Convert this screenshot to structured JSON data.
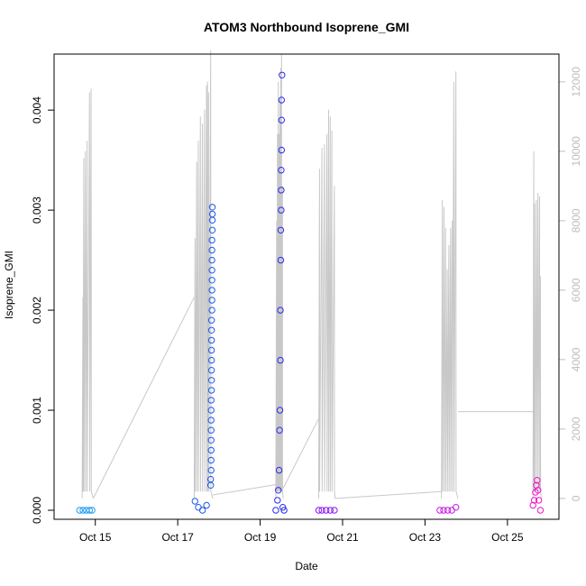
{
  "chart_data": {
    "type": "scatter",
    "title": "ATOM3 Northbound Isoprene_GMI",
    "xlabel": "Date",
    "ylabel": "Isoprene_GMI",
    "x_ticks": [
      "Oct 15",
      "Oct 17",
      "Oct 19",
      "Oct 21",
      "Oct 23",
      "Oct 25"
    ],
    "y_ticks": [
      "0.000",
      "0.001",
      "0.002",
      "0.003",
      "0.004"
    ],
    "y2_ticks": [
      "0",
      "2000",
      "4000",
      "6000",
      "8000",
      "10000",
      "12000"
    ],
    "x_range": [
      "Oct 14 0:00",
      "Oct 26 6:00"
    ],
    "ylim": [
      -9e-05,
      0.00456
    ],
    "y2lim": [
      -600,
      12800
    ],
    "grid": false,
    "colors": {
      "altitude_line": "#c8c8c8",
      "right_axis": "#bdbdbd",
      "flight_1": "#1e9bf0",
      "flight_2": "#1e5aeb",
      "flight_3": "#2a2af0",
      "flight_4": "#8c18ee",
      "flight_5": "#c81ae6",
      "flight_6": "#ee16cc"
    },
    "series": [
      {
        "flight": 1,
        "color_key": "flight_1",
        "date_range": [
          "Oct 14 15:00",
          "Oct 14 21:30"
        ],
        "isoprene_points": [
          [
            14.62,
            0
          ],
          [
            14.7,
            0
          ],
          [
            14.78,
            0
          ],
          [
            14.86,
            0
          ],
          [
            14.92,
            0
          ]
        ]
      },
      {
        "flight": 2,
        "color_key": "flight_2",
        "date_range": [
          "Oct 17 10:00",
          "Oct 17 20:00"
        ],
        "isoprene_points": [
          [
            17.42,
            9e-05
          ],
          [
            17.5,
            3e-05
          ],
          [
            17.6,
            0
          ],
          [
            17.7,
            5e-05
          ],
          [
            17.8,
            0.00025
          ],
          [
            17.8,
            0.00031
          ],
          [
            17.81,
            0.0004
          ],
          [
            17.81,
            0.0005
          ],
          [
            17.81,
            0.0006
          ],
          [
            17.81,
            0.0007
          ],
          [
            17.81,
            0.0008
          ],
          [
            17.81,
            0.0009
          ],
          [
            17.81,
            0.001
          ],
          [
            17.81,
            0.0011
          ],
          [
            17.82,
            0.0012
          ],
          [
            17.82,
            0.0013
          ],
          [
            17.82,
            0.0014
          ],
          [
            17.82,
            0.0015
          ],
          [
            17.82,
            0.0016
          ],
          [
            17.82,
            0.0017
          ],
          [
            17.82,
            0.0018
          ],
          [
            17.82,
            0.0019
          ],
          [
            17.83,
            0.002
          ],
          [
            17.83,
            0.0021
          ],
          [
            17.83,
            0.0022
          ],
          [
            17.83,
            0.0023
          ],
          [
            17.83,
            0.0024
          ],
          [
            17.83,
            0.0025
          ],
          [
            17.83,
            0.0026
          ],
          [
            17.83,
            0.0027
          ],
          [
            17.84,
            0.0028
          ],
          [
            17.84,
            0.0029
          ],
          [
            17.84,
            0.00296
          ],
          [
            17.84,
            0.00303
          ]
        ]
      },
      {
        "flight": 3,
        "color_key": "flight_3",
        "date_range": [
          "Oct 19 9:00",
          "Oct 19 14:00"
        ],
        "isoprene_points": [
          [
            19.38,
            0
          ],
          [
            19.42,
            0.0001
          ],
          [
            19.44,
            0.0002
          ],
          [
            19.46,
            0.0004
          ],
          [
            19.47,
            0.0008
          ],
          [
            19.48,
            0.001
          ],
          [
            19.49,
            0.0015
          ],
          [
            19.49,
            0.002
          ],
          [
            19.5,
            0.0025
          ],
          [
            19.5,
            0.0028
          ],
          [
            19.51,
            0.003
          ],
          [
            19.51,
            0.0032
          ],
          [
            19.51,
            0.0034
          ],
          [
            19.52,
            0.0036
          ],
          [
            19.52,
            0.0039
          ],
          [
            19.52,
            0.0041
          ],
          [
            19.53,
            0.00435
          ],
          [
            19.55,
            3e-05
          ],
          [
            19.58,
            0
          ]
        ]
      },
      {
        "flight": 4,
        "color_key": "flight_4",
        "date_range": [
          "Oct 20 10:00",
          "Oct 20 20:00"
        ],
        "isoprene_points": [
          [
            20.42,
            0
          ],
          [
            20.5,
            0
          ],
          [
            20.6,
            0
          ],
          [
            20.7,
            0
          ],
          [
            20.8,
            0
          ]
        ]
      },
      {
        "flight": 5,
        "color_key": "flight_5",
        "date_range": [
          "Oct 23 9:00",
          "Oct 23 19:00"
        ],
        "isoprene_points": [
          [
            23.36,
            0
          ],
          [
            23.45,
            0
          ],
          [
            23.55,
            0
          ],
          [
            23.65,
            0
          ],
          [
            23.75,
            3e-05
          ]
        ]
      },
      {
        "flight": 6,
        "color_key": "flight_6",
        "date_range": [
          "Oct 25 15:00",
          "Oct 25 20:30"
        ],
        "isoprene_points": [
          [
            25.62,
            5e-05
          ],
          [
            25.65,
            0.0001
          ],
          [
            25.68,
            0.00018
          ],
          [
            25.7,
            0.00025
          ],
          [
            25.72,
            0.0003
          ],
          [
            25.74,
            0.0002
          ],
          [
            25.76,
            0.0001
          ],
          [
            25.8,
            0
          ]
        ]
      }
    ]
  }
}
